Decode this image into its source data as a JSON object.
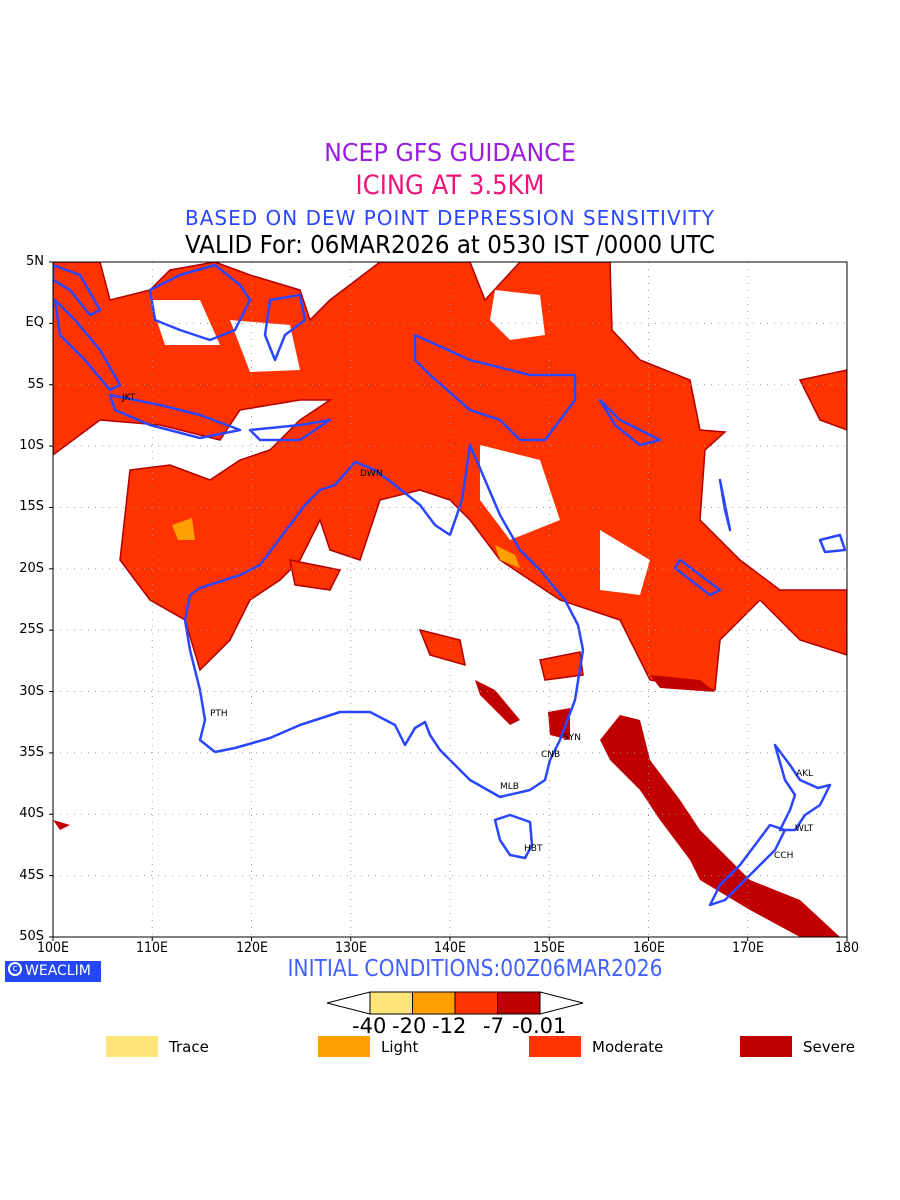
{
  "title": {
    "line1": "NCEP GFS GUIDANCE",
    "line2": "ICING AT 3.5KM",
    "line3": "BASED ON DEW POINT DEPRESSION SENSITIVITY",
    "line4": "VALID For: 06MAR2026 at 0530 IST /0000 UTC"
  },
  "map": {
    "lat_labels": [
      "5N",
      "EQ",
      "5S",
      "10S",
      "15S",
      "20S",
      "25S",
      "30S",
      "35S",
      "40S",
      "45S",
      "50S"
    ],
    "lon_labels": [
      "100E",
      "110E",
      "120E",
      "130E",
      "140E",
      "150E",
      "160E",
      "170E",
      "180"
    ],
    "cities": [
      "JKT",
      "DWN",
      "PTH",
      "SYN",
      "CNB",
      "MLB",
      "HBT",
      "AKL",
      "WLT",
      "CCH"
    ],
    "coast_color": "#2a46ff",
    "land_color": "#ffffff"
  },
  "footer": {
    "logo": "WEACLIM",
    "initial_conditions": "INITIAL CONDITIONS:00Z06MAR2026"
  },
  "colorbar": {
    "colors": [
      "#ffe57a",
      "#ffa000",
      "#ff3300",
      "#c00000"
    ],
    "tick_labels": [
      "-40",
      "-20",
      "-12",
      "-7",
      "-0.01"
    ]
  },
  "legend": [
    {
      "label": "Trace",
      "color": "#ffe57a"
    },
    {
      "label": "Light",
      "color": "#ffa000"
    },
    {
      "label": "Moderate",
      "color": "#ff3300"
    },
    {
      "label": "Severe",
      "color": "#c00000"
    }
  ]
}
